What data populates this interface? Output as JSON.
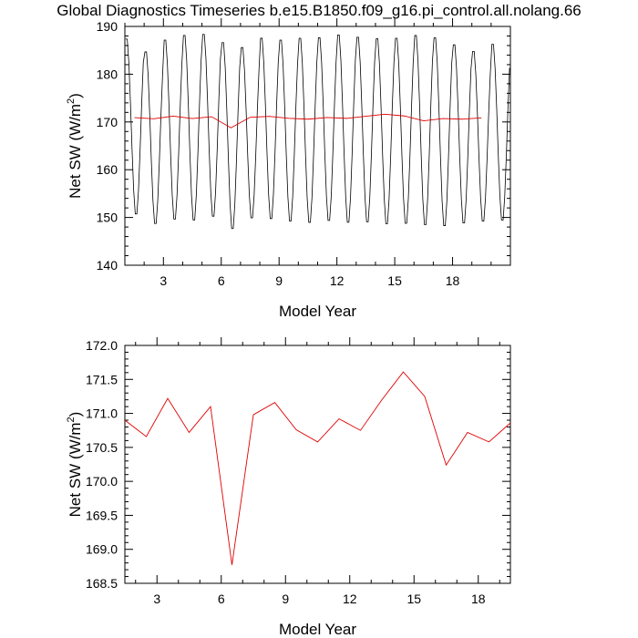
{
  "page": {
    "title": "Global Diagnostics Timeseries b.e15.B1850.f09_g16.pi_control.all.nolang.66"
  },
  "chart_data": [
    {
      "type": "line",
      "xlabel": "Model Year",
      "ylabel_text": "Net SW (W/m",
      "ylabel_sup": "2",
      "ylabel_close": ")",
      "xlim": [
        1,
        21
      ],
      "ylim": [
        140,
        190
      ],
      "xticks": [
        "3",
        "6",
        "9",
        "12",
        "15",
        "18"
      ],
      "xtick_values": [
        3,
        6,
        9,
        12,
        15,
        18
      ],
      "yticks": [
        "140",
        "150",
        "160",
        "170",
        "180",
        "190"
      ],
      "ytick_values": [
        140,
        150,
        160,
        170,
        180,
        190
      ],
      "series": [
        {
          "color": "#000000",
          "x_start": 1.04,
          "x_step": 0.08333,
          "monthly_peaks": [
            188,
            185.3,
            187.8,
            188.8,
            189,
            187.3,
            186.2,
            188.2,
            187.8,
            188.2,
            188.3,
            188.9,
            188.4,
            188.1,
            188.2,
            188.8,
            188.3,
            186.8,
            185.4,
            186.9
          ],
          "monthly_troughs": [
            150.1,
            148.1,
            149,
            148.8,
            149.6,
            147,
            149.3,
            149.1,
            148.6,
            148.3,
            148.7,
            148.3,
            148.4,
            148,
            148.1,
            147.8,
            147.6,
            148.2,
            148.6,
            148.8
          ]
        },
        {
          "color": "#e00000",
          "x": [
            1.5,
            2.5,
            3.5,
            4.5,
            5.5,
            6.5,
            7.5,
            8.5,
            9.5,
            10.5,
            11.5,
            12.5,
            13.5,
            14.5,
            15.5,
            16.5,
            17.5,
            18.5,
            19.5
          ],
          "y": [
            170.9,
            170.66,
            171.22,
            170.72,
            171.1,
            168.77,
            170.98,
            171.16,
            170.76,
            170.58,
            170.92,
            170.75,
            171.2,
            171.61,
            171.25,
            170.24,
            170.72,
            170.58,
            170.86
          ]
        }
      ]
    },
    {
      "type": "line",
      "xlabel": "Model Year",
      "ylabel_text": "Net SW (W/m",
      "ylabel_sup": "2",
      "ylabel_close": ")",
      "xlim": [
        1.5,
        19.5
      ],
      "ylim": [
        168.5,
        172.0
      ],
      "xticks": [
        "3",
        "6",
        "9",
        "12",
        "15",
        "18"
      ],
      "xtick_values": [
        3,
        6,
        9,
        12,
        15,
        18
      ],
      "yticks": [
        "168.5",
        "169.0",
        "169.5",
        "170.0",
        "170.5",
        "171.0",
        "171.5",
        "172.0"
      ],
      "ytick_values": [
        168.5,
        169.0,
        169.5,
        170.0,
        170.5,
        171.0,
        171.5,
        172.0
      ],
      "series": [
        {
          "color": "#e00000",
          "x": [
            1.5,
            2.5,
            3.5,
            4.5,
            5.5,
            6.5,
            7.5,
            8.5,
            9.5,
            10.5,
            11.5,
            12.5,
            13.5,
            14.5,
            15.5,
            16.5,
            17.5,
            18.5,
            19.5
          ],
          "y": [
            170.9,
            170.66,
            171.22,
            170.72,
            171.1,
            168.77,
            170.98,
            171.16,
            170.76,
            170.58,
            170.92,
            170.75,
            171.2,
            171.61,
            171.25,
            170.24,
            170.72,
            170.58,
            170.86
          ]
        }
      ]
    }
  ]
}
